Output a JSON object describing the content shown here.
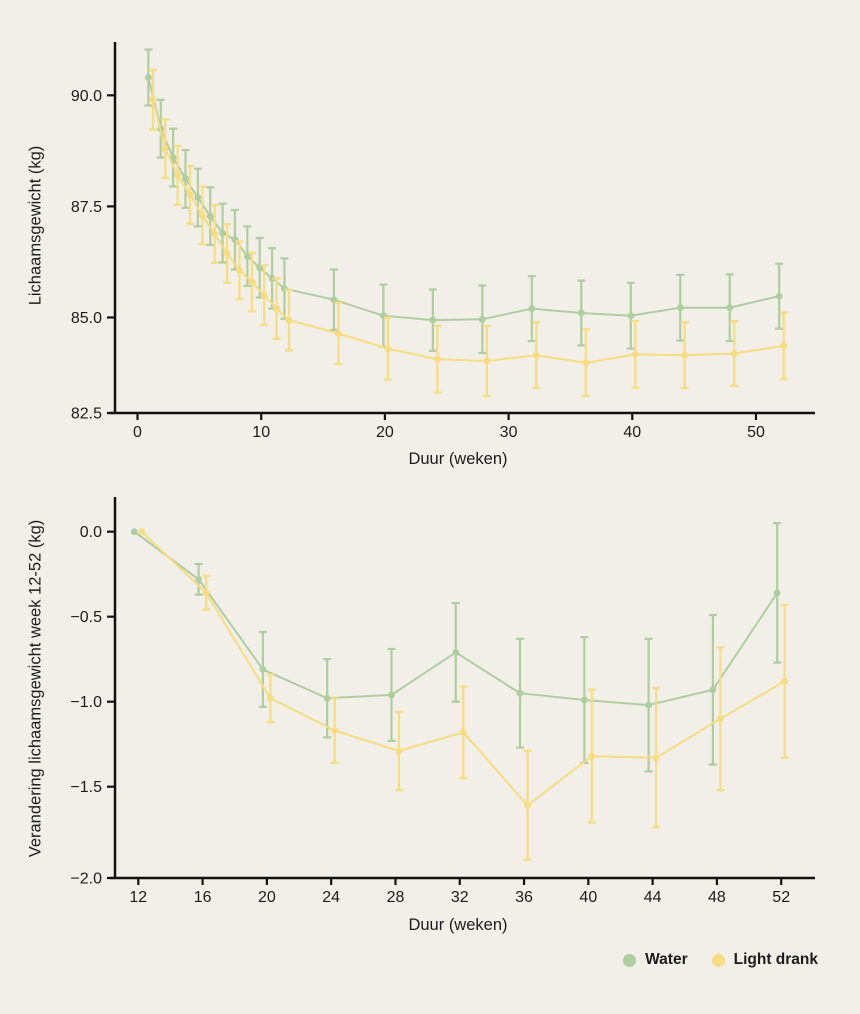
{
  "page": {
    "background": "#f2efe9"
  },
  "colors": {
    "water": "#aecda0",
    "light_drank": "#f8dc80",
    "axis": "#111111",
    "text": "#1c1c1c"
  },
  "legend": {
    "items": [
      {
        "label": "Water",
        "color_key": "water"
      },
      {
        "label": "Light drank",
        "color_key": "light_drank"
      }
    ]
  },
  "chart_data": [
    {
      "type": "line",
      "title": "",
      "xlabel": "Duur (weken)",
      "ylabel": "Lichaamsgewicht (kg)",
      "x": [
        1,
        2,
        3,
        4,
        5,
        6,
        7,
        8,
        9,
        10,
        11,
        12,
        16,
        20,
        24,
        28,
        32,
        36,
        40,
        44,
        48,
        52
      ],
      "series": [
        {
          "name": "Water",
          "color_key": "water",
          "values": [
            90.4,
            89.25,
            88.6,
            88.12,
            87.7,
            87.28,
            86.9,
            86.75,
            86.38,
            86.12,
            85.88,
            85.65,
            85.4,
            85.04,
            84.94,
            84.96,
            85.2,
            85.1,
            85.04,
            85.22,
            85.22,
            85.48
          ],
          "stderr": [
            0.63,
            0.65,
            0.65,
            0.65,
            0.65,
            0.65,
            0.66,
            0.67,
            0.67,
            0.67,
            0.68,
            0.68,
            0.68,
            0.7,
            0.69,
            0.76,
            0.73,
            0.73,
            0.74,
            0.74,
            0.75,
            0.73
          ]
        },
        {
          "name": "Light drank",
          "color_key": "light_drank",
          "values": [
            89.9,
            88.8,
            88.2,
            87.76,
            87.3,
            86.88,
            86.44,
            86.06,
            85.8,
            85.5,
            85.2,
            84.94,
            84.64,
            84.3,
            84.06,
            84.02,
            84.15,
            83.98,
            84.17,
            84.15,
            84.19,
            84.36
          ],
          "stderr": [
            0.67,
            0.66,
            0.66,
            0.65,
            0.65,
            0.65,
            0.66,
            0.65,
            0.66,
            0.67,
            0.68,
            0.68,
            0.69,
            0.7,
            0.75,
            0.79,
            0.74,
            0.75,
            0.75,
            0.74,
            0.73,
            0.75
          ]
        }
      ],
      "x_ticks": [
        {
          "v": 0,
          "label": "0"
        },
        {
          "v": 10,
          "label": "10"
        },
        {
          "v": 20,
          "label": "20"
        },
        {
          "v": 30,
          "label": "30"
        },
        {
          "v": 40,
          "label": "40"
        },
        {
          "v": 50,
          "label": "50"
        }
      ],
      "y_ticks": [
        {
          "v": 90.0,
          "label": "90.0"
        },
        {
          "v": 87.5,
          "label": "87.5"
        },
        {
          "v": 85.0,
          "label": "85.0"
        },
        {
          "v": 82.5,
          "label": "82.5"
        }
      ],
      "xlim": [
        -1.82,
        53.56
      ],
      "ylim": [
        82.85,
        91.2
      ],
      "grid": false,
      "legend_position": "bottom-right"
    },
    {
      "type": "line",
      "title": "",
      "xlabel": "Duur (weken)",
      "ylabel": "Verandering lichaamsgewicht week 12-52 (kg)",
      "x": [
        12,
        16,
        20,
        24,
        28,
        32,
        36,
        40,
        44,
        48,
        52
      ],
      "series": [
        {
          "name": "Water",
          "color_key": "water",
          "values": [
            0.0,
            -0.28,
            -0.81,
            -0.98,
            -0.96,
            -0.71,
            -0.95,
            -0.99,
            -1.02,
            -0.93,
            -0.36
          ],
          "stderr": [
            0,
            0.09,
            0.22,
            0.23,
            0.27,
            0.29,
            0.32,
            0.37,
            0.39,
            0.44,
            0.41
          ]
        },
        {
          "name": "Light drank",
          "color_key": "light_drank",
          "values": [
            0.0,
            -0.36,
            -0.98,
            -1.17,
            -1.29,
            -1.18,
            -1.61,
            -1.32,
            -1.33,
            -1.1,
            -0.88
          ],
          "stderr": [
            0,
            0.1,
            0.14,
            0.19,
            0.23,
            0.27,
            0.32,
            0.39,
            0.41,
            0.42,
            0.45
          ]
        }
      ],
      "x_ticks": [
        {
          "v": 12,
          "label": "12"
        },
        {
          "v": 16,
          "label": "16"
        },
        {
          "v": 20,
          "label": "20"
        },
        {
          "v": 24,
          "label": "24"
        },
        {
          "v": 28,
          "label": "28"
        },
        {
          "v": 32,
          "label": "32"
        },
        {
          "v": 36,
          "label": "36"
        },
        {
          "v": 40,
          "label": "40"
        },
        {
          "v": 44,
          "label": "44"
        },
        {
          "v": 48,
          "label": "48"
        },
        {
          "v": 52,
          "label": "52"
        }
      ],
      "y_ticks": [
        {
          "v": 0.0,
          "label": "0.0"
        },
        {
          "v": -0.5,
          "label": "−0.5"
        },
        {
          "v": -1.0,
          "label": "−1.0"
        },
        {
          "v": -1.5,
          "label": "−1.5"
        },
        {
          "v": -2.0,
          "label": "−2.0"
        }
      ],
      "xlim": [
        10.55,
        53.17
      ],
      "ylim": [
        -2.037,
        0.204
      ],
      "grid": false,
      "legend_position": "bottom-right"
    }
  ]
}
